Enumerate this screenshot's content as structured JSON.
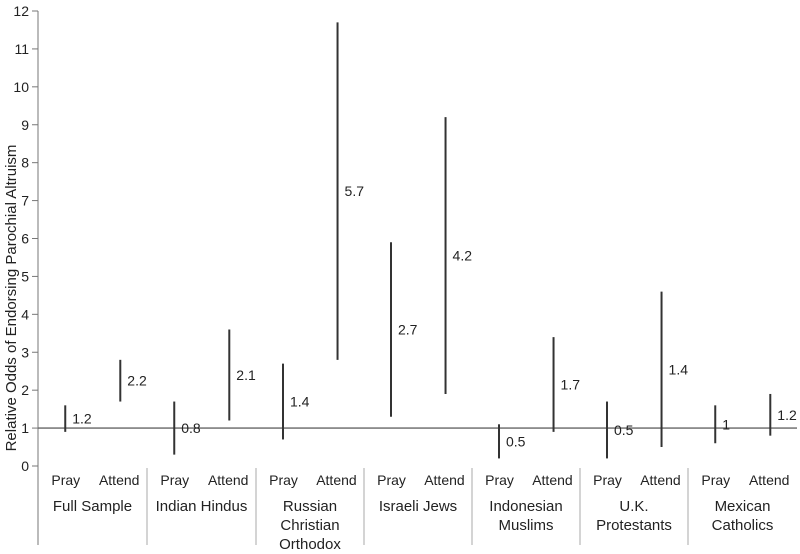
{
  "chart_data": {
    "type": "range-bar",
    "ylabel": "Relative Odds of Endorsing Parochial Altruism",
    "ylim": [
      0,
      12
    ],
    "yticks": [
      0,
      1,
      2,
      3,
      4,
      5,
      6,
      7,
      8,
      9,
      10,
      11,
      12
    ],
    "reference_line": 1,
    "subcategories": [
      "Pray",
      "Attend"
    ],
    "groups": [
      {
        "label_lines": [
          "Full Sample"
        ],
        "bars": [
          {
            "sub": "Pray",
            "low": 0.9,
            "high": 1.6,
            "label": "1.2"
          },
          {
            "sub": "Attend",
            "low": 1.7,
            "high": 2.8,
            "label": "2.2"
          }
        ]
      },
      {
        "label_lines": [
          "Indian Hindus"
        ],
        "bars": [
          {
            "sub": "Pray",
            "low": 0.3,
            "high": 1.7,
            "label": "0.8"
          },
          {
            "sub": "Attend",
            "low": 1.2,
            "high": 3.6,
            "label": "2.1"
          }
        ]
      },
      {
        "label_lines": [
          "Russian",
          "Christian",
          "Orthodox"
        ],
        "bars": [
          {
            "sub": "Pray",
            "low": 0.7,
            "high": 2.7,
            "label": "1.4"
          },
          {
            "sub": "Attend",
            "low": 2.8,
            "high": 11.7,
            "label": "5.7"
          }
        ]
      },
      {
        "label_lines": [
          "Israeli Jews"
        ],
        "bars": [
          {
            "sub": "Pray",
            "low": 1.3,
            "high": 5.9,
            "label": "2.7"
          },
          {
            "sub": "Attend",
            "low": 1.9,
            "high": 9.2,
            "label": "4.2"
          }
        ]
      },
      {
        "label_lines": [
          "Indonesian",
          "Muslims"
        ],
        "bars": [
          {
            "sub": "Pray",
            "low": 0.2,
            "high": 1.1,
            "label": "0.5"
          },
          {
            "sub": "Attend",
            "low": 0.9,
            "high": 3.4,
            "label": "1.7"
          }
        ]
      },
      {
        "label_lines": [
          "U.K.",
          "Protestants"
        ],
        "bars": [
          {
            "sub": "Pray",
            "low": 0.2,
            "high": 1.7,
            "label": "0.5"
          },
          {
            "sub": "Attend",
            "low": 0.5,
            "high": 4.6,
            "label": "1.4"
          }
        ]
      },
      {
        "label_lines": [
          "Mexican",
          "Catholics"
        ],
        "bars": [
          {
            "sub": "Pray",
            "low": 0.6,
            "high": 1.6,
            "label": "1"
          },
          {
            "sub": "Attend",
            "low": 0.8,
            "high": 1.9,
            "label": "1.2"
          }
        ]
      }
    ]
  }
}
